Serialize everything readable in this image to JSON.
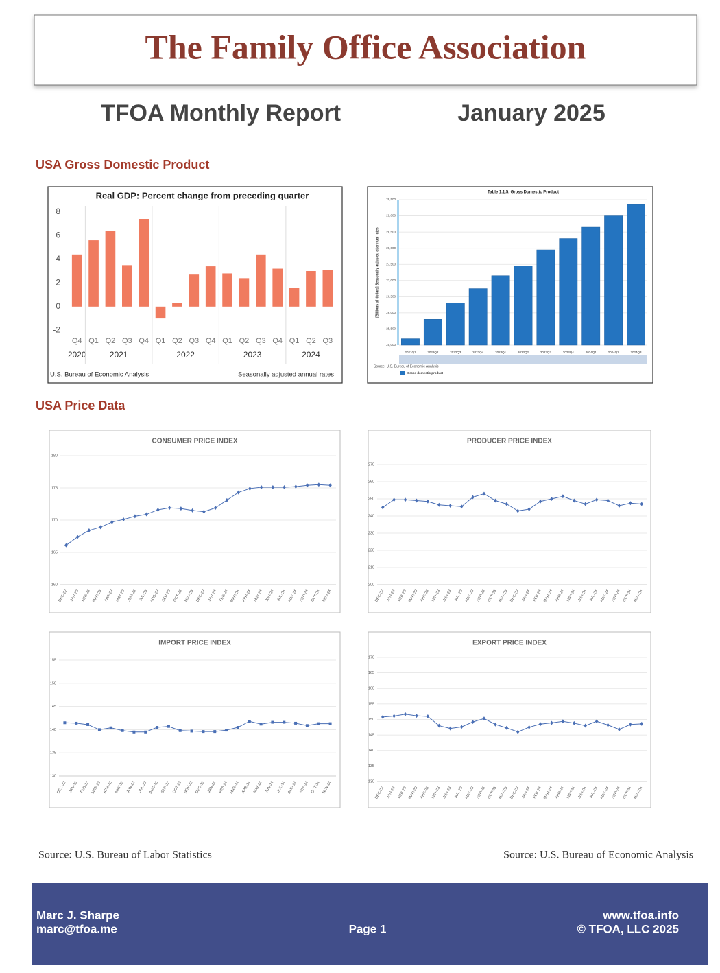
{
  "header": {
    "title": "The Family Office Association"
  },
  "report": {
    "title": "TFOA Monthly Report",
    "date": "January 2025"
  },
  "sections": [
    "USA Gross Domestic Product",
    "USA Price Data"
  ],
  "chart_data": [
    {
      "type": "bar",
      "title": "Real GDP:  Percent change from preceding quarter",
      "categories": [
        "Q4",
        "Q1",
        "Q2",
        "Q3",
        "Q4",
        "Q1",
        "Q2",
        "Q3",
        "Q4",
        "Q1",
        "Q2",
        "Q3",
        "Q4",
        "Q1",
        "Q2",
        "Q3"
      ],
      "year_groups": [
        {
          "label": "2020",
          "size": 1
        },
        {
          "label": "2021",
          "size": 4
        },
        {
          "label": "2022",
          "size": 4
        },
        {
          "label": "2023",
          "size": 4
        },
        {
          "label": "2024",
          "size": 3
        }
      ],
      "values": [
        4.4,
        5.6,
        6.4,
        3.5,
        7.4,
        -1.0,
        0.3,
        2.7,
        3.4,
        2.8,
        2.4,
        4.4,
        3.2,
        1.6,
        3.0,
        3.1
      ],
      "color": "#f07b5f",
      "ylim": [
        -2.5,
        8.5
      ],
      "yticks": [
        -2,
        0,
        2,
        4,
        6,
        8
      ],
      "grid": false,
      "notes": [
        "U.S. Bureau of Economic Analysis",
        "Seasonally adjusted annual rates"
      ]
    },
    {
      "type": "bar",
      "title": "Table 1.1.5. Gross Domestic Product",
      "ylabel": "[Billions of dollars] Seasonally adjusted at annual rates",
      "categories": [
        "2021Q1",
        "2022Q2",
        "2022Q3",
        "2022Q4",
        "2023Q1",
        "2023Q2",
        "2023Q3",
        "2023Q4",
        "2024Q1",
        "2024Q2",
        "2024Q3"
      ],
      "values": [
        25200,
        25800,
        26300,
        26750,
        27150,
        27450,
        27950,
        28300,
        28650,
        29000,
        29350
      ],
      "color": "#2474c0",
      "ylim": [
        25000,
        29500
      ],
      "yticks": [
        {
          "value": 25000,
          "label": "25,000"
        },
        {
          "value": 25500,
          "label": "25,500"
        },
        {
          "value": 26000,
          "label": "26,000"
        },
        {
          "value": 26500,
          "label": "26,500"
        },
        {
          "value": 27000,
          "label": "27,000"
        },
        {
          "value": 27500,
          "label": "27,500"
        },
        {
          "value": 28000,
          "label": "28,000"
        },
        {
          "value": 28500,
          "label": "28,500"
        },
        {
          "value": 29000,
          "label": "29,000"
        },
        {
          "value": 29500,
          "label": "29,500"
        }
      ],
      "grid": true,
      "source": "Source: U.S. Bureau of Economic Analysis",
      "legend": "Gross domestic product"
    },
    {
      "type": "line",
      "title": "CONSUMER PRICE INDEX",
      "marker": "diamond",
      "color": "#4a6fb5",
      "categories": [
        "DEC-22",
        "JAN-23",
        "FEB-23",
        "MAR-23",
        "APR-23",
        "MAY-23",
        "JUN-23",
        "JUL-23",
        "AUG-23",
        "SEP-23",
        "OCT-23",
        "NOV-23",
        "DEC-23",
        "JAN-24",
        "FEB-24",
        "MAR-24",
        "APR-24",
        "MAY-24",
        "JUN-24",
        "JUL-24",
        "AUG-24",
        "SEP-24",
        "OCT-24",
        "NOV-24"
      ],
      "values": [
        166.1,
        167.4,
        168.4,
        168.9,
        169.7,
        170.1,
        170.6,
        170.9,
        171.6,
        171.9,
        171.8,
        171.5,
        171.3,
        171.9,
        173.1,
        174.3,
        174.9,
        175.1,
        175.1,
        175.1,
        175.2,
        175.4,
        175.5,
        175.4
      ],
      "ylim": [
        160,
        180
      ],
      "yticks": [
        160,
        165,
        170,
        175,
        180
      ],
      "grid": true
    },
    {
      "type": "line",
      "title": "PRODUCER PRICE INDEX",
      "marker": "diamond",
      "color": "#4a6fb5",
      "categories": [
        "DEC-22",
        "JAN-23",
        "FEB-23",
        "MAR-23",
        "APR-23",
        "MAY-23",
        "JUN-23",
        "JUL-23",
        "AUG-23",
        "SEP-23",
        "OCT-23",
        "NOV-23",
        "DEC-23",
        "JAN-24",
        "FEB-24",
        "MAR-24",
        "APR-24",
        "MAY-24",
        "JUN-24",
        "JUL-24",
        "AUG-24",
        "SEP-24",
        "OCT-24",
        "NOV-24"
      ],
      "values": [
        245,
        249.5,
        249.5,
        249,
        248.5,
        246.5,
        246,
        245.5,
        251,
        253,
        249,
        247,
        243,
        244,
        248.5,
        250,
        251.5,
        249,
        247,
        249.5,
        249,
        246,
        247.5,
        247
      ],
      "ylim": [
        200,
        270
      ],
      "yticks": [
        200,
        210,
        220,
        230,
        240,
        250,
        260,
        270
      ],
      "grid": true
    },
    {
      "type": "line",
      "title": "IMPORT PRICE INDEX",
      "marker": "square",
      "color": "#4a6fb5",
      "categories": [
        "DEC-22",
        "JAN-23",
        "FEB-23",
        "MAR-23",
        "APR-23",
        "MAY-23",
        "JUN-23",
        "JUL-23",
        "AUG-23",
        "SEP-23",
        "OCT-23",
        "NOV-23",
        "DEC-23",
        "JAN-24",
        "FEB-24",
        "MAR-24",
        "APR-24",
        "MAY-24",
        "JUN-24",
        "JUL-24",
        "AUG-24",
        "SEP-24",
        "OCT-24",
        "NOV-24"
      ],
      "values": [
        141.5,
        141.4,
        141.1,
        140,
        140.4,
        139.8,
        139.5,
        139.5,
        140.5,
        140.7,
        139.8,
        139.7,
        139.6,
        139.6,
        139.9,
        140.5,
        141.8,
        141.2,
        141.6,
        141.6,
        141.4,
        140.9,
        141.3,
        141.3
      ],
      "ylim": [
        130,
        155
      ],
      "yticks": [
        130,
        135,
        140,
        145,
        150,
        155
      ],
      "grid": true
    },
    {
      "type": "line",
      "title": "EXPORT PRICE INDEX",
      "marker": "diamond",
      "color": "#4a6fb5",
      "categories": [
        "DEC-22",
        "JAN-23",
        "FEB-23",
        "MAR-23",
        "APR-23",
        "MAY-23",
        "JUN-23",
        "JUL-23",
        "AUG-23",
        "SEP-23",
        "OCT-23",
        "NOV-23",
        "DEC-23",
        "JAN-24",
        "FEB-24",
        "MAR-24",
        "APR-24",
        "MAY-24",
        "JUN-24",
        "JUL-24",
        "AUG-24",
        "SEP-24",
        "OCT-24",
        "NOV-24"
      ],
      "values": [
        150.8,
        151.1,
        151.7,
        151.2,
        151.0,
        148,
        147.1,
        147.6,
        149.2,
        150.3,
        148.4,
        147.3,
        146,
        147.5,
        148.5,
        148.9,
        149.4,
        148.8,
        148,
        149.4,
        148.2,
        146.8,
        148.4,
        148.6
      ],
      "ylim": [
        130,
        170
      ],
      "yticks": [
        130,
        135,
        140,
        145,
        150,
        155,
        160,
        165,
        170
      ],
      "grid": true
    }
  ],
  "sources": [
    "Source: U.S. Bureau of Labor Statistics",
    "Source: U.S. Bureau of Economic Analysis"
  ],
  "footer": {
    "name": "Marc J. Sharpe",
    "email": "marc@tfoa.me",
    "page": "Page 1",
    "website": "www.tfoa.info",
    "copyright": "© TFOA, LLC 2025"
  }
}
